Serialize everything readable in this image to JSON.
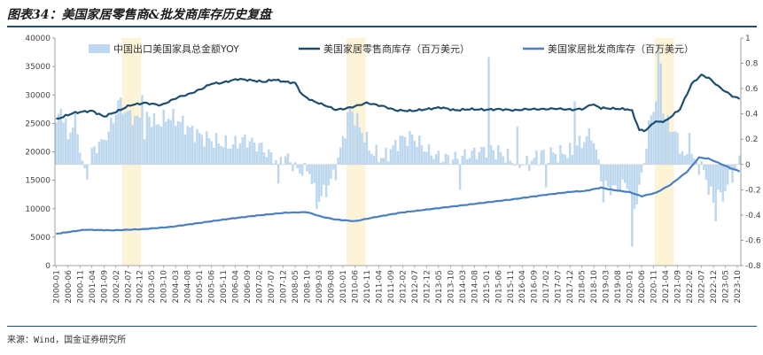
{
  "header": {
    "title": "图表34：美国家居零售商&批发商库存历史复盘"
  },
  "footer": {
    "source": "来源：Wind，国金证券研究所"
  },
  "chart_data": {
    "type": "bar",
    "x_start": "2000-01",
    "x_end": "2023-11",
    "y_left": {
      "min": 0,
      "max": 40000,
      "ticks": [
        "0",
        "5000",
        "10000",
        "15000",
        "20000",
        "25000",
        "30000",
        "35000",
        "40000"
      ]
    },
    "y_right": {
      "min": -0.8,
      "max": 1.0,
      "ticks": [
        "-0.8",
        "-0.6",
        "-0.4",
        "-0.2",
        "0",
        "0.2",
        "0.4",
        "0.6",
        "0.8",
        "1"
      ]
    },
    "x_tick_labels": [
      "2000-01",
      "2000-06",
      "2000-11",
      "2001-04",
      "2001-09",
      "2002-02",
      "2002-07",
      "2002-12",
      "2003-05",
      "2003-10",
      "2004-03",
      "2004-08",
      "2005-01",
      "2005-06",
      "2005-11",
      "2006-04",
      "2006-09",
      "2007-02",
      "2007-07",
      "2007-12",
      "2008-05",
      "2008-10",
      "2009-03",
      "2009-08",
      "2010-01",
      "2010-06",
      "2010-11",
      "2011-04",
      "2011-09",
      "2012-02",
      "2012-07",
      "2012-12",
      "2013-05",
      "2013-10",
      "2014-03",
      "2014-08",
      "2015-01",
      "2015-06",
      "2015-11",
      "2016-04",
      "2016-09",
      "2017-02",
      "2017-07",
      "2017-12",
      "2018-05",
      "2018-10",
      "2019-03",
      "2019-08",
      "2020-01",
      "2020-06",
      "2020-11",
      "2021-04",
      "2021-09",
      "2022-02",
      "2022-07",
      "2022-12",
      "2023-05",
      "2023-10"
    ],
    "highlight_periods": [
      [
        "2002-05",
        "2002-12"
      ],
      [
        "2010-03",
        "2010-10"
      ],
      [
        "2020-12",
        "2021-07"
      ]
    ],
    "colors": {
      "yoy": "#bcd7ee",
      "retail": "#1d4e6f",
      "wholesale": "#4a7fc1",
      "highlight": "#fdf3d7"
    },
    "series": [
      {
        "name": "中国出口美国家具总金额YOY",
        "axis": "right",
        "kind": "bar",
        "knots": [
          [
            "2000-01",
            0.3
          ],
          [
            "2000-03",
            0.45
          ],
          [
            "2000-06",
            0.25
          ],
          [
            "2000-09",
            0.35
          ],
          [
            "2001-01",
            -0.08
          ],
          [
            "2001-04",
            0.1
          ],
          [
            "2001-08",
            0.15
          ],
          [
            "2002-01",
            0.35
          ],
          [
            "2002-03",
            0.5
          ],
          [
            "2002-07",
            0.4
          ],
          [
            "2002-12",
            0.35
          ],
          [
            "2003-03",
            0.4
          ],
          [
            "2003-07",
            0.32
          ],
          [
            "2003-12",
            0.38
          ],
          [
            "2004-04",
            0.35
          ],
          [
            "2004-09",
            0.28
          ],
          [
            "2005-02",
            0.22
          ],
          [
            "2005-08",
            0.18
          ],
          [
            "2006-02",
            0.15
          ],
          [
            "2006-08",
            0.2
          ],
          [
            "2007-02",
            0.15
          ],
          [
            "2007-08",
            0.05
          ],
          [
            "2008-02",
            0.05
          ],
          [
            "2008-06",
            -0.05
          ],
          [
            "2008-11",
            -0.05
          ],
          [
            "2009-02",
            -0.3
          ],
          [
            "2009-06",
            -0.2
          ],
          [
            "2009-10",
            -0.05
          ],
          [
            "2010-01",
            0.2
          ],
          [
            "2010-04",
            0.45
          ],
          [
            "2010-08",
            0.3
          ],
          [
            "2011-01",
            0.1
          ],
          [
            "2011-06",
            0.05
          ],
          [
            "2012-01",
            0.2
          ],
          [
            "2012-06",
            0.22
          ],
          [
            "2013-01",
            0.1
          ],
          [
            "2013-06",
            0.05
          ],
          [
            "2014-01",
            0.05
          ],
          [
            "2014-06",
            0.08
          ],
          [
            "2015-01",
            0.12
          ],
          [
            "2015-06",
            0.1
          ],
          [
            "2016-01",
            0.02
          ],
          [
            "2016-06",
            0.0
          ],
          [
            "2017-01",
            0.1
          ],
          [
            "2017-06",
            0.08
          ],
          [
            "2018-01",
            0.1
          ],
          [
            "2018-09",
            0.25
          ],
          [
            "2019-02",
            -0.15
          ],
          [
            "2019-06",
            -0.2
          ],
          [
            "2019-12",
            -0.15
          ],
          [
            "2020-03",
            -0.35
          ],
          [
            "2020-06",
            -0.1
          ],
          [
            "2020-09",
            0.3
          ],
          [
            "2021-01",
            0.6
          ],
          [
            "2021-04",
            0.35
          ],
          [
            "2021-08",
            0.25
          ],
          [
            "2021-12",
            0.05
          ],
          [
            "2022-03",
            0.05
          ],
          [
            "2022-08",
            -0.05
          ],
          [
            "2022-11",
            -0.25
          ],
          [
            "2023-02",
            -0.35
          ],
          [
            "2023-06",
            -0.15
          ],
          [
            "2023-11",
            0.02
          ]
        ],
        "spikes": [
          [
            "2000-06",
            0.2
          ],
          [
            "2001-02",
            -0.12
          ],
          [
            "2001-07",
            0.18
          ],
          [
            "2003-01",
            0.55
          ],
          [
            "2003-02",
            0.2
          ],
          [
            "2007-10",
            -0.15
          ],
          [
            "2009-02",
            -0.35
          ],
          [
            "2014-02",
            -0.2
          ],
          [
            "2015-02",
            0.85
          ],
          [
            "2015-03",
            0.15
          ],
          [
            "2016-02",
            0.3
          ],
          [
            "2017-02",
            -0.18
          ],
          [
            "2018-02",
            0.5
          ],
          [
            "2018-03",
            0.15
          ],
          [
            "2019-02",
            -0.3
          ],
          [
            "2020-02",
            -0.65
          ],
          [
            "2020-03",
            -0.35
          ],
          [
            "2021-01",
            0.95
          ],
          [
            "2021-02",
            0.8
          ],
          [
            "2022-02",
            0.25
          ],
          [
            "2023-01",
            -0.45
          ],
          [
            "2023-02",
            -0.2
          ]
        ]
      },
      {
        "name": "美国家居零售商库存（百万美元）",
        "axis": "left",
        "kind": "line",
        "knots": [
          [
            "2000-01",
            25700
          ],
          [
            "2000-08",
            26800
          ],
          [
            "2000-11",
            27000
          ],
          [
            "2001-04",
            27200
          ],
          [
            "2001-09",
            26200
          ],
          [
            "2002-03",
            27200
          ],
          [
            "2002-08",
            28200
          ],
          [
            "2003-02",
            28600
          ],
          [
            "2003-09",
            28200
          ],
          [
            "2004-04",
            29600
          ],
          [
            "2004-09",
            30200
          ],
          [
            "2005-02",
            31100
          ],
          [
            "2005-06",
            32000
          ],
          [
            "2005-10",
            32100
          ],
          [
            "2006-05",
            32800
          ],
          [
            "2006-10",
            32600
          ],
          [
            "2007-04",
            32300
          ],
          [
            "2007-08",
            32700
          ],
          [
            "2008-01",
            32300
          ],
          [
            "2008-05",
            32100
          ],
          [
            "2008-08",
            30000
          ],
          [
            "2008-12",
            29000
          ],
          [
            "2009-06",
            28100
          ],
          [
            "2009-10",
            27400
          ],
          [
            "2010-02",
            27600
          ],
          [
            "2010-06",
            28000
          ],
          [
            "2010-11",
            28600
          ],
          [
            "2011-06",
            28000
          ],
          [
            "2011-11",
            27300
          ],
          [
            "2012-06",
            27200
          ],
          [
            "2012-12",
            27500
          ],
          [
            "2013-06",
            27800
          ],
          [
            "2013-12",
            27300
          ],
          [
            "2014-06",
            27500
          ],
          [
            "2015-01",
            27400
          ],
          [
            "2015-06",
            27500
          ],
          [
            "2016-01",
            27300
          ],
          [
            "2016-06",
            27500
          ],
          [
            "2017-01",
            27500
          ],
          [
            "2017-06",
            27600
          ],
          [
            "2018-01",
            27400
          ],
          [
            "2018-06",
            27600
          ],
          [
            "2018-09",
            28400
          ],
          [
            "2019-01",
            27700
          ],
          [
            "2019-06",
            27600
          ],
          [
            "2019-12",
            27500
          ],
          [
            "2020-02",
            27200
          ],
          [
            "2020-05",
            23800
          ],
          [
            "2020-08",
            23800
          ],
          [
            "2020-11",
            25200
          ],
          [
            "2021-04",
            25400
          ],
          [
            "2021-10",
            27500
          ],
          [
            "2022-03",
            32000
          ],
          [
            "2022-07",
            33500
          ],
          [
            "2022-10",
            33000
          ],
          [
            "2023-03",
            31200
          ],
          [
            "2023-08",
            29800
          ],
          [
            "2023-11",
            29300
          ]
        ]
      },
      {
        "name": "美国家居批发商库存（百万美元）",
        "axis": "left",
        "kind": "line",
        "knots": [
          [
            "2000-01",
            5600
          ],
          [
            "2001-01",
            6300
          ],
          [
            "2002-01",
            6200
          ],
          [
            "2003-01",
            6400
          ],
          [
            "2004-01",
            6800
          ],
          [
            "2005-01",
            7500
          ],
          [
            "2006-01",
            8200
          ],
          [
            "2007-01",
            8800
          ],
          [
            "2008-01",
            9300
          ],
          [
            "2008-10",
            9400
          ],
          [
            "2009-04",
            8600
          ],
          [
            "2009-10",
            8100
          ],
          [
            "2010-06",
            7800
          ],
          [
            "2011-01",
            8400
          ],
          [
            "2012-01",
            9300
          ],
          [
            "2013-01",
            9900
          ],
          [
            "2014-01",
            10500
          ],
          [
            "2015-01",
            11100
          ],
          [
            "2016-01",
            11700
          ],
          [
            "2017-01",
            12400
          ],
          [
            "2018-01",
            13000
          ],
          [
            "2018-06",
            13100
          ],
          [
            "2019-01",
            13700
          ],
          [
            "2019-06",
            13300
          ],
          [
            "2020-01",
            12900
          ],
          [
            "2020-06",
            12200
          ],
          [
            "2020-12",
            12800
          ],
          [
            "2021-06",
            14200
          ],
          [
            "2022-01",
            16500
          ],
          [
            "2022-06",
            19000
          ],
          [
            "2022-10",
            18800
          ],
          [
            "2023-03",
            17900
          ],
          [
            "2023-08",
            17000
          ],
          [
            "2023-11",
            16600
          ]
        ]
      }
    ]
  }
}
